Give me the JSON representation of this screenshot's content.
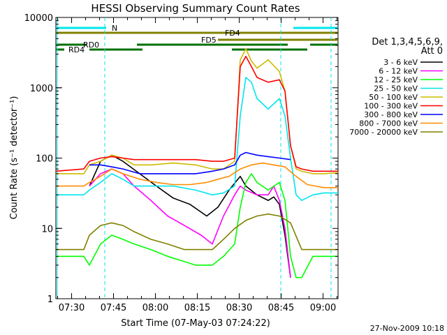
{
  "chart_data": {
    "type": "line",
    "title": "HESSI Observing Summary Count Rates",
    "xlabel": "Start Time (07-May-03 07:24:22)",
    "ylabel": "Count Rate (s⁻¹ detector⁻¹)",
    "yscale": "log",
    "ylim": [
      1,
      10000
    ],
    "xlim_minutes": [
      0,
      101
    ],
    "x_tick_labels": [
      "07:30",
      "07:45",
      "08:00",
      "08:15",
      "08:30",
      "08:45",
      "09:00"
    ],
    "y_tick_labels": [
      "1",
      "10",
      "100",
      "1000",
      "10000"
    ],
    "footer": "27-Nov-2009 10:18",
    "legend": {
      "header": "Det 1,3,4,5,6,9,",
      "subheader": "Att 0",
      "placement": "right"
    },
    "flags": [
      {
        "name": "N",
        "color": "#00e5ee",
        "segments": [
          [
            0,
            18
          ],
          [
            85,
            101
          ]
        ]
      },
      {
        "name": "FD4",
        "color": "#808000",
        "segments": [
          [
            0,
            101
          ]
        ]
      },
      {
        "name": "FD5",
        "color": "#808000",
        "segments": [
          [
            58,
            101
          ]
        ]
      },
      {
        "name": "RD0",
        "color": "#007000",
        "segments": [
          [
            0,
            11
          ],
          [
            29,
            83
          ],
          [
            91,
            101
          ]
        ]
      },
      {
        "name": "RD4",
        "color": "#007000",
        "segments": [
          [
            0,
            3
          ],
          [
            12,
            31
          ],
          [
            63,
            90
          ]
        ]
      }
    ],
    "vlines_minutes": [
      17.5,
      80.5,
      98.5
    ],
    "series": [
      {
        "name": "3 - 6 keV",
        "color": "#000000",
        "x": [
          0,
          10,
          12,
          16,
          20,
          24,
          30,
          36,
          42,
          48,
          54,
          58,
          62,
          66,
          68,
          72,
          76,
          78,
          80,
          82,
          84,
          86,
          88,
          92,
          96,
          101
        ],
        "y": [
          null,
          null,
          40,
          90,
          110,
          90,
          60,
          40,
          27,
          22,
          15,
          20,
          35,
          55,
          40,
          30,
          25,
          28,
          22,
          8,
          2,
          null,
          null,
          null,
          null,
          null
        ]
      },
      {
        "name": "6 - 12 keV",
        "color": "#ff00ff",
        "x": [
          0,
          10,
          12,
          16,
          20,
          24,
          28,
          34,
          40,
          46,
          52,
          56,
          60,
          64,
          66,
          68,
          72,
          76,
          78,
          80,
          82,
          84,
          86,
          88,
          92,
          96,
          101
        ],
        "y": [
          null,
          null,
          40,
          60,
          70,
          60,
          40,
          25,
          15,
          11,
          8,
          6,
          15,
          30,
          40,
          35,
          30,
          30,
          40,
          25,
          10,
          2,
          null,
          null,
          null,
          null,
          null
        ]
      },
      {
        "name": "12 - 25 keV",
        "color": "#00ff00",
        "x": [
          0,
          10,
          12,
          16,
          20,
          24,
          28,
          34,
          40,
          50,
          56,
          60,
          64,
          66,
          68,
          70,
          72,
          76,
          80,
          82,
          84,
          86,
          88,
          92,
          96,
          101
        ],
        "y": [
          4,
          4,
          3,
          6,
          8,
          7,
          6,
          5,
          4,
          3,
          3,
          4,
          6,
          20,
          45,
          60,
          45,
          35,
          45,
          25,
          4,
          2,
          2,
          4,
          4,
          4
        ]
      },
      {
        "name": "25 - 50 keV",
        "color": "#00e5ee",
        "x": [
          0,
          10,
          12,
          16,
          20,
          24,
          28,
          34,
          42,
          50,
          56,
          60,
          64,
          66,
          68,
          70,
          72,
          76,
          80,
          82,
          84,
          86,
          88,
          92,
          96,
          101
        ],
        "y": [
          30,
          30,
          35,
          45,
          60,
          50,
          40,
          40,
          40,
          35,
          30,
          32,
          40,
          400,
          1400,
          1200,
          700,
          500,
          700,
          400,
          100,
          30,
          25,
          30,
          32,
          32
        ]
      },
      {
        "name": "50 - 100 keV",
        "color": "#ccbb00",
        "x": [
          0,
          10,
          12,
          16,
          20,
          24,
          28,
          34,
          42,
          50,
          56,
          60,
          64,
          66,
          68,
          70,
          72,
          76,
          80,
          82,
          84,
          86,
          88,
          92,
          96,
          101
        ],
        "y": [
          60,
          60,
          80,
          90,
          110,
          100,
          80,
          80,
          85,
          80,
          70,
          70,
          90,
          2500,
          3600,
          2400,
          1900,
          2500,
          1700,
          900,
          150,
          70,
          65,
          60,
          60,
          62
        ]
      },
      {
        "name": "100 - 300 keV",
        "color": "#ff0000",
        "x": [
          0,
          10,
          12,
          16,
          20,
          24,
          28,
          34,
          42,
          50,
          56,
          60,
          64,
          66,
          68,
          70,
          72,
          76,
          80,
          82,
          84,
          86,
          88,
          92,
          96,
          101
        ],
        "y": [
          65,
          70,
          90,
          100,
          105,
          100,
          95,
          95,
          95,
          95,
          90,
          90,
          100,
          2000,
          2800,
          2000,
          1400,
          1200,
          1300,
          900,
          150,
          75,
          70,
          65,
          65,
          65
        ]
      },
      {
        "name": "300 - 800 keV",
        "color": "#0000ff",
        "x": [
          0,
          10,
          12,
          16,
          20,
          24,
          30,
          40,
          50,
          56,
          60,
          64,
          66,
          68,
          72,
          76,
          80,
          84,
          86,
          88
        ],
        "y": [
          null,
          null,
          80,
          80,
          75,
          70,
          60,
          60,
          60,
          65,
          70,
          80,
          110,
          120,
          110,
          105,
          100,
          95,
          null,
          null
        ]
      },
      {
        "name": "800 - 7000 keV",
        "color": "#ff8c00",
        "x": [
          0,
          10,
          12,
          16,
          20,
          24,
          30,
          36,
          42,
          48,
          54,
          58,
          62,
          66,
          70,
          74,
          78,
          82,
          86,
          90,
          96,
          101
        ],
        "y": [
          40,
          40,
          45,
          55,
          70,
          60,
          50,
          45,
          42,
          42,
          45,
          50,
          55,
          70,
          80,
          85,
          80,
          75,
          55,
          42,
          38,
          38
        ]
      },
      {
        "name": "7000 - 20000 keV",
        "color": "#808000",
        "x": [
          0,
          10,
          12,
          16,
          20,
          24,
          28,
          34,
          40,
          46,
          52,
          56,
          60,
          64,
          68,
          72,
          76,
          80,
          84,
          88,
          92,
          96,
          101
        ],
        "y": [
          5,
          5,
          8,
          11,
          12,
          11,
          9,
          7,
          6,
          5,
          5,
          5,
          7,
          10,
          13,
          15,
          16,
          15,
          12,
          5,
          5,
          5,
          5
        ]
      }
    ]
  }
}
